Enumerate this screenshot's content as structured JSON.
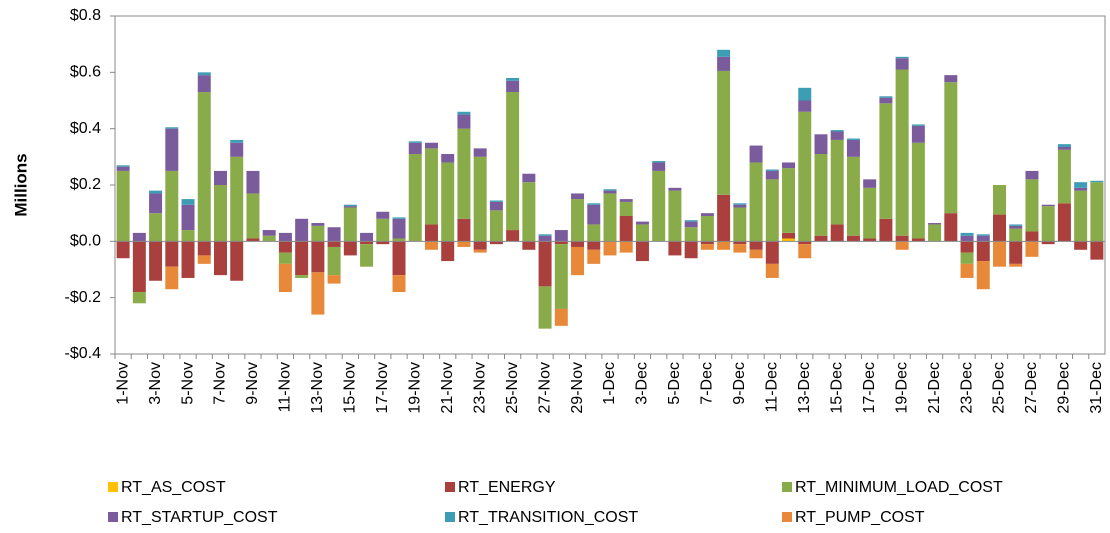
{
  "chart_data": {
    "type": "stacked_bar",
    "y_label": "Millions",
    "categories": [
      "1-Nov",
      null,
      "3-Nov",
      null,
      "5-Nov",
      null,
      "7-Nov",
      null,
      "9-Nov",
      null,
      "11-Nov",
      null,
      "13-Nov",
      null,
      "15-Nov",
      null,
      "17-Nov",
      null,
      "19-Nov",
      null,
      "21-Nov",
      null,
      "23-Nov",
      null,
      "25-Nov",
      null,
      "27-Nov",
      null,
      "29-Nov",
      null,
      "1-Dec",
      null,
      "3-Dec",
      null,
      "5-Dec",
      null,
      "7-Dec",
      null,
      "9-Dec",
      null,
      "11-Dec",
      null,
      "13-Dec",
      null,
      "15-Dec",
      null,
      "17-Dec",
      null,
      "19-Dec",
      null,
      "21-Dec",
      null,
      "23-Dec",
      null,
      "25-Dec",
      null,
      "27-Dec",
      null,
      "29-Dec",
      null,
      "31-Dec"
    ],
    "ylim": [
      -0.4,
      0.8
    ],
    "yticks": [
      {
        "value": -0.4,
        "label": "-$0.4"
      },
      {
        "value": -0.2,
        "label": "-$0.2"
      },
      {
        "value": 0,
        "label": "$0.0"
      },
      {
        "value": 0.2,
        "label": "$0.2"
      },
      {
        "value": 0.4,
        "label": "$0.4"
      },
      {
        "value": 0.6,
        "label": "$0.6"
      },
      {
        "value": 0.8,
        "label": "$0.8"
      }
    ],
    "series": [
      {
        "name": "RT_AS_COST",
        "color": "#ffc000",
        "values": [
          0,
          0,
          0,
          0,
          0,
          0,
          0,
          0,
          0,
          0,
          0,
          0,
          0,
          0,
          0,
          0,
          0,
          0,
          0,
          0,
          0,
          0,
          0,
          0,
          0,
          0,
          0,
          0,
          0,
          0,
          0,
          0,
          0,
          0,
          0,
          0,
          0,
          0,
          0,
          0,
          0,
          0.01,
          0,
          0,
          0,
          0,
          0,
          0,
          0,
          0,
          0,
          0,
          0,
          0,
          0,
          0,
          0,
          0,
          0,
          0,
          0
        ]
      },
      {
        "name": "RT_ENERGY",
        "color": "#a9403d",
        "values": [
          -0.06,
          -0.18,
          -0.14,
          -0.09,
          -0.13,
          -0.05,
          -0.12,
          -0.14,
          0.01,
          0,
          -0.04,
          -0.12,
          -0.11,
          -0.02,
          -0.05,
          -0.01,
          -0.01,
          -0.12,
          0,
          0.06,
          -0.07,
          0.08,
          -0.03,
          -0.01,
          0.04,
          -0.03,
          -0.16,
          -0.01,
          -0.02,
          -0.03,
          0,
          0.09,
          -0.07,
          0,
          -0.05,
          -0.06,
          -0.01,
          0.165,
          -0.01,
          -0.03,
          -0.08,
          0.02,
          -0.01,
          0.02,
          0.06,
          0.02,
          0.01,
          0.08,
          0.02,
          0.01,
          0,
          0.1,
          -0.04,
          -0.07,
          0.095,
          -0.08,
          0.035,
          -0.01,
          0.135,
          -0.03,
          -0.065
        ]
      },
      {
        "name": "RT_MINIMUM_LOAD_COST",
        "color": "#8aab4a",
        "values": [
          0.25,
          -0.04,
          0.1,
          0.25,
          0.04,
          0.53,
          0.2,
          0.3,
          0.16,
          0.02,
          -0.04,
          -0.01,
          0.055,
          -0.1,
          0.12,
          -0.08,
          0.08,
          0.01,
          0.31,
          0.27,
          0.28,
          0.32,
          0.3,
          0.11,
          0.49,
          0.21,
          -0.15,
          -0.23,
          0.15,
          0.06,
          0.17,
          0.05,
          0.06,
          0.25,
          0.18,
          0.05,
          0.09,
          0.44,
          0.12,
          0.28,
          0.22,
          0.23,
          0.46,
          0.29,
          0.3,
          0.28,
          0.18,
          0.41,
          0.59,
          0.34,
          0.06,
          0.465,
          -0.04,
          0,
          0.105,
          0.045,
          0.185,
          0.125,
          0.19,
          0.18,
          0.21
        ]
      },
      {
        "name": "RT_STARTUP_COST",
        "color": "#7a5c9c",
        "values": [
          0.015,
          0.03,
          0.07,
          0.15,
          0.09,
          0.06,
          0.05,
          0.05,
          0.08,
          0.02,
          0.03,
          0.08,
          0.01,
          0.05,
          0.005,
          0.03,
          0.025,
          0.07,
          0.04,
          0.02,
          0.03,
          0.05,
          0.03,
          0.03,
          0.04,
          0.03,
          0.02,
          0.04,
          0.02,
          0.07,
          0.01,
          0.01,
          0.01,
          0.03,
          0.01,
          0.02,
          0.01,
          0.05,
          0.01,
          0.06,
          0.03,
          0.02,
          0.04,
          0.07,
          0.03,
          0.06,
          0.03,
          0.02,
          0.04,
          0.06,
          0.005,
          0.025,
          0.02,
          0.02,
          0,
          0.01,
          0.03,
          0.005,
          0.01,
          0.01,
          0
        ]
      },
      {
        "name": "RT_TRANSITION_COST",
        "color": "#3d9db5",
        "values": [
          0.005,
          0,
          0.01,
          0.005,
          0.02,
          0.01,
          0,
          0.01,
          0,
          0,
          0,
          0,
          0,
          0,
          0.005,
          0,
          0,
          0.005,
          0.005,
          0,
          0,
          0.01,
          0,
          0.005,
          0.01,
          0,
          0.005,
          0,
          0,
          0.005,
          0.005,
          0,
          0,
          0.005,
          0,
          0.005,
          0,
          0.025,
          0.005,
          0,
          0.005,
          0,
          0.045,
          0,
          0.005,
          0.005,
          0,
          0.005,
          0.005,
          0.005,
          0,
          0,
          0.01,
          0.005,
          0,
          0.005,
          0,
          0,
          0.01,
          0.02,
          0.005
        ]
      },
      {
        "name": "RT_PUMP_COST",
        "color": "#e8893a",
        "values": [
          0,
          0,
          0,
          -0.08,
          0,
          -0.03,
          0,
          0,
          0,
          0,
          -0.1,
          0,
          -0.15,
          -0.03,
          0,
          0,
          0,
          -0.06,
          0,
          -0.03,
          0,
          -0.02,
          -0.01,
          0,
          0,
          0,
          0,
          -0.06,
          -0.1,
          -0.05,
          -0.05,
          -0.04,
          0,
          0,
          0,
          0,
          -0.02,
          -0.03,
          -0.03,
          -0.03,
          -0.05,
          0,
          -0.05,
          0,
          0,
          0,
          0,
          0,
          -0.03,
          0,
          0,
          0,
          -0.05,
          -0.1,
          -0.09,
          -0.01,
          -0.055,
          0,
          0,
          0,
          0
        ]
      }
    ]
  }
}
